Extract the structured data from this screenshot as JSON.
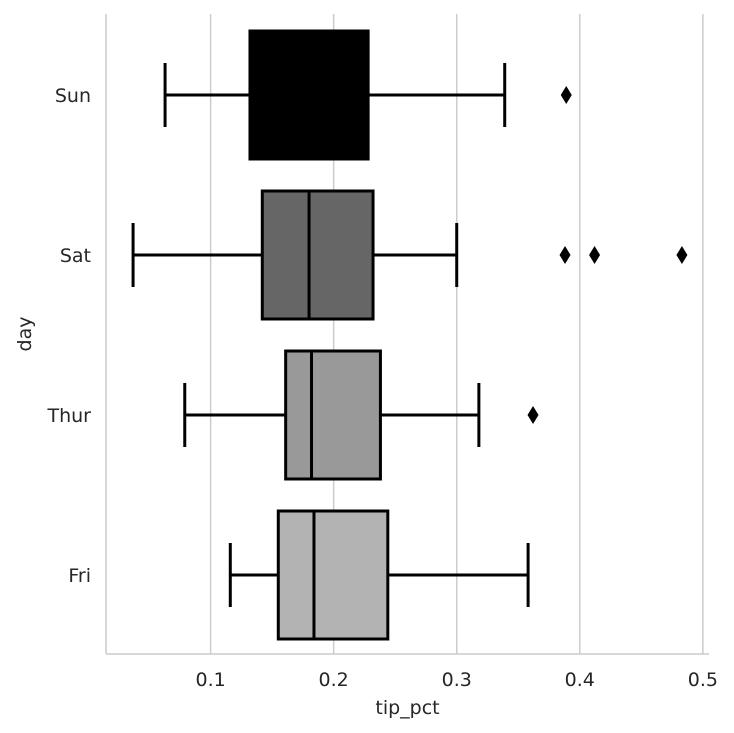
{
  "chart_data": {
    "type": "boxplot",
    "orientation": "horizontal",
    "xlabel": "tip_pct",
    "ylabel": "day",
    "xlim": [
      0.015,
      0.505
    ],
    "xticks": [
      0.1,
      0.2,
      0.3,
      0.4,
      0.5
    ],
    "xtick_labels": [
      "0.1",
      "0.2",
      "0.3",
      "0.4",
      "0.5"
    ],
    "grid": "vertical",
    "categories": [
      "Sun",
      "Sat",
      "Thur",
      "Fri"
    ],
    "boxes": [
      {
        "category": "Sun",
        "whisker_low": 0.063,
        "q1": 0.132,
        "median": 0.187,
        "q3": 0.228,
        "whisker_high": 0.339,
        "outliers": [
          0.389
        ],
        "color": "#000000"
      },
      {
        "category": "Sat",
        "whisker_low": 0.037,
        "q1": 0.142,
        "median": 0.18,
        "q3": 0.232,
        "whisker_high": 0.3,
        "outliers": [
          0.388,
          0.412,
          0.483
        ],
        "color": "#666666"
      },
      {
        "category": "Thur",
        "whisker_low": 0.079,
        "q1": 0.161,
        "median": 0.182,
        "q3": 0.238,
        "whisker_high": 0.318,
        "outliers": [
          0.362
        ],
        "color": "#999999"
      },
      {
        "category": "Fri",
        "whisker_low": 0.116,
        "q1": 0.155,
        "median": 0.184,
        "q3": 0.244,
        "whisker_high": 0.358,
        "outliers": [],
        "color": "#b3b3b3"
      }
    ]
  }
}
